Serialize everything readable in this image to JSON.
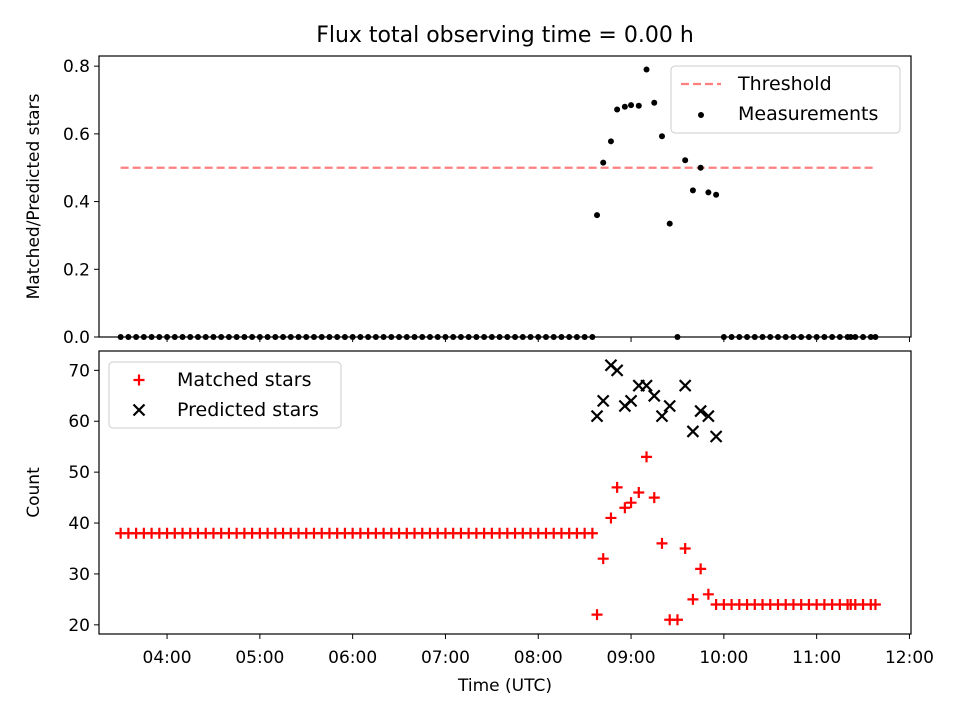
{
  "title": "Flux total observing time = 0.00 h",
  "chart_data": [
    {
      "type": "scatter",
      "ylabel": "Matched/Predicted stars",
      "ylim": [
        0,
        0.83
      ],
      "yticks": [
        0.0,
        0.2,
        0.4,
        0.6,
        0.8
      ],
      "ytick_labels": [
        "0.0",
        "0.2",
        "0.4",
        "0.6",
        "0.8"
      ],
      "legend": {
        "placement": "top-right",
        "entries": [
          "Threshold",
          "Measurements"
        ]
      },
      "threshold": {
        "name": "Threshold",
        "value": 0.5,
        "x_start": "03:30",
        "x_end": "11:38",
        "color": "#ff7f7f"
      },
      "series": [
        {
          "name": "Measurements",
          "marker": "dot",
          "color": "#000000",
          "points": [
            [
              "03:30",
              0
            ],
            [
              "03:35",
              0
            ],
            [
              "03:40",
              0
            ],
            [
              "03:45",
              0
            ],
            [
              "03:50",
              0
            ],
            [
              "03:55",
              0
            ],
            [
              "04:00",
              0
            ],
            [
              "04:05",
              0
            ],
            [
              "04:10",
              0
            ],
            [
              "04:15",
              0
            ],
            [
              "04:20",
              0
            ],
            [
              "04:25",
              0
            ],
            [
              "04:30",
              0
            ],
            [
              "04:35",
              0
            ],
            [
              "04:40",
              0
            ],
            [
              "04:45",
              0
            ],
            [
              "04:50",
              0
            ],
            [
              "04:55",
              0
            ],
            [
              "05:00",
              0
            ],
            [
              "05:05",
              0
            ],
            [
              "05:10",
              0
            ],
            [
              "05:15",
              0
            ],
            [
              "05:20",
              0
            ],
            [
              "05:25",
              0
            ],
            [
              "05:30",
              0
            ],
            [
              "05:35",
              0
            ],
            [
              "05:40",
              0
            ],
            [
              "05:45",
              0
            ],
            [
              "05:50",
              0
            ],
            [
              "05:55",
              0
            ],
            [
              "06:00",
              0
            ],
            [
              "06:05",
              0
            ],
            [
              "06:10",
              0
            ],
            [
              "06:15",
              0
            ],
            [
              "06:20",
              0
            ],
            [
              "06:25",
              0
            ],
            [
              "06:30",
              0
            ],
            [
              "06:35",
              0
            ],
            [
              "06:40",
              0
            ],
            [
              "06:45",
              0
            ],
            [
              "06:50",
              0
            ],
            [
              "06:55",
              0
            ],
            [
              "07:00",
              0
            ],
            [
              "07:05",
              0
            ],
            [
              "07:10",
              0
            ],
            [
              "07:15",
              0
            ],
            [
              "07:20",
              0
            ],
            [
              "07:25",
              0
            ],
            [
              "07:30",
              0
            ],
            [
              "07:35",
              0
            ],
            [
              "07:40",
              0
            ],
            [
              "07:45",
              0
            ],
            [
              "07:50",
              0
            ],
            [
              "07:55",
              0
            ],
            [
              "08:00",
              0
            ],
            [
              "08:05",
              0
            ],
            [
              "08:10",
              0
            ],
            [
              "08:15",
              0
            ],
            [
              "08:20",
              0
            ],
            [
              "08:25",
              0
            ],
            [
              "08:30",
              0
            ],
            [
              "08:35",
              0
            ],
            [
              "08:38",
              0.36
            ],
            [
              "08:42",
              0.515
            ],
            [
              "08:47",
              0.578
            ],
            [
              "08:51",
              0.672
            ],
            [
              "08:56",
              0.68
            ],
            [
              "09:00",
              0.685
            ],
            [
              "09:05",
              0.683
            ],
            [
              "09:10",
              0.79
            ],
            [
              "09:15",
              0.692
            ],
            [
              "09:20",
              0.593
            ],
            [
              "09:25",
              0.335
            ],
            [
              "09:30",
              0
            ],
            [
              "09:35",
              0.522
            ],
            [
              "09:40",
              0.433
            ],
            [
              "09:45",
              0.5
            ],
            [
              "09:50",
              0.427
            ],
            [
              "09:55",
              0.42
            ],
            [
              "10:00",
              0
            ],
            [
              "10:05",
              0
            ],
            [
              "10:10",
              0
            ],
            [
              "10:15",
              0
            ],
            [
              "10:20",
              0
            ],
            [
              "10:25",
              0
            ],
            [
              "10:30",
              0
            ],
            [
              "10:35",
              0
            ],
            [
              "10:40",
              0
            ],
            [
              "10:45",
              0
            ],
            [
              "10:50",
              0
            ],
            [
              "10:55",
              0
            ],
            [
              "11:00",
              0
            ],
            [
              "11:05",
              0
            ],
            [
              "11:10",
              0
            ],
            [
              "11:15",
              0
            ],
            [
              "11:20",
              0
            ],
            [
              "11:22",
              0
            ],
            [
              "11:25",
              0
            ],
            [
              "11:30",
              0
            ],
            [
              "11:35",
              0
            ],
            [
              "11:38",
              0
            ]
          ]
        }
      ]
    },
    {
      "type": "scatter",
      "xlabel": "Time (UTC)",
      "ylabel": "Count",
      "xlim": [
        "03:16",
        "12:01"
      ],
      "ylim": [
        18.2,
        73.8
      ],
      "xticks": [
        "04:00",
        "05:00",
        "06:00",
        "07:00",
        "08:00",
        "09:00",
        "10:00",
        "11:00",
        "12:00"
      ],
      "yticks": [
        20,
        30,
        40,
        50,
        60,
        70
      ],
      "ytick_labels": [
        "20",
        "30",
        "40",
        "50",
        "60",
        "70"
      ],
      "legend": {
        "placement": "top-left",
        "entries": [
          "Matched stars",
          "Predicted stars"
        ]
      },
      "series": [
        {
          "name": "Matched stars",
          "marker": "plus",
          "color": "#ff0000",
          "points": [
            [
              "03:30",
              38
            ],
            [
              "03:35",
              38
            ],
            [
              "03:40",
              38
            ],
            [
              "03:45",
              38
            ],
            [
              "03:50",
              38
            ],
            [
              "03:55",
              38
            ],
            [
              "04:00",
              38
            ],
            [
              "04:05",
              38
            ],
            [
              "04:10",
              38
            ],
            [
              "04:15",
              38
            ],
            [
              "04:20",
              38
            ],
            [
              "04:25",
              38
            ],
            [
              "04:30",
              38
            ],
            [
              "04:35",
              38
            ],
            [
              "04:40",
              38
            ],
            [
              "04:45",
              38
            ],
            [
              "04:50",
              38
            ],
            [
              "04:55",
              38
            ],
            [
              "05:00",
              38
            ],
            [
              "05:05",
              38
            ],
            [
              "05:10",
              38
            ],
            [
              "05:15",
              38
            ],
            [
              "05:20",
              38
            ],
            [
              "05:25",
              38
            ],
            [
              "05:30",
              38
            ],
            [
              "05:35",
              38
            ],
            [
              "05:40",
              38
            ],
            [
              "05:45",
              38
            ],
            [
              "05:50",
              38
            ],
            [
              "05:55",
              38
            ],
            [
              "06:00",
              38
            ],
            [
              "06:05",
              38
            ],
            [
              "06:10",
              38
            ],
            [
              "06:15",
              38
            ],
            [
              "06:20",
              38
            ],
            [
              "06:25",
              38
            ],
            [
              "06:30",
              38
            ],
            [
              "06:35",
              38
            ],
            [
              "06:40",
              38
            ],
            [
              "06:45",
              38
            ],
            [
              "06:50",
              38
            ],
            [
              "06:55",
              38
            ],
            [
              "07:00",
              38
            ],
            [
              "07:05",
              38
            ],
            [
              "07:10",
              38
            ],
            [
              "07:15",
              38
            ],
            [
              "07:20",
              38
            ],
            [
              "07:25",
              38
            ],
            [
              "07:30",
              38
            ],
            [
              "07:35",
              38
            ],
            [
              "07:40",
              38
            ],
            [
              "07:45",
              38
            ],
            [
              "07:50",
              38
            ],
            [
              "07:55",
              38
            ],
            [
              "08:00",
              38
            ],
            [
              "08:05",
              38
            ],
            [
              "08:10",
              38
            ],
            [
              "08:15",
              38
            ],
            [
              "08:20",
              38
            ],
            [
              "08:25",
              38
            ],
            [
              "08:30",
              38
            ],
            [
              "08:35",
              38
            ],
            [
              "08:38",
              22
            ],
            [
              "08:42",
              33
            ],
            [
              "08:47",
              41
            ],
            [
              "08:51",
              47
            ],
            [
              "08:56",
              43
            ],
            [
              "09:00",
              44
            ],
            [
              "09:05",
              46
            ],
            [
              "09:10",
              53
            ],
            [
              "09:15",
              45
            ],
            [
              "09:20",
              36
            ],
            [
              "09:25",
              21
            ],
            [
              "09:30",
              21
            ],
            [
              "09:35",
              35
            ],
            [
              "09:40",
              25
            ],
            [
              "09:45",
              31
            ],
            [
              "09:50",
              26
            ],
            [
              "09:55",
              24
            ],
            [
              "10:00",
              24
            ],
            [
              "10:05",
              24
            ],
            [
              "10:10",
              24
            ],
            [
              "10:15",
              24
            ],
            [
              "10:20",
              24
            ],
            [
              "10:25",
              24
            ],
            [
              "10:30",
              24
            ],
            [
              "10:35",
              24
            ],
            [
              "10:40",
              24
            ],
            [
              "10:45",
              24
            ],
            [
              "10:50",
              24
            ],
            [
              "10:55",
              24
            ],
            [
              "11:00",
              24
            ],
            [
              "11:05",
              24
            ],
            [
              "11:10",
              24
            ],
            [
              "11:15",
              24
            ],
            [
              "11:20",
              24
            ],
            [
              "11:22",
              24
            ],
            [
              "11:25",
              24
            ],
            [
              "11:30",
              24
            ],
            [
              "11:35",
              24
            ],
            [
              "11:38",
              24
            ]
          ]
        },
        {
          "name": "Predicted stars",
          "marker": "x",
          "color": "#000000",
          "points": [
            [
              "08:38",
              61
            ],
            [
              "08:42",
              64
            ],
            [
              "08:47",
              71
            ],
            [
              "08:51",
              70
            ],
            [
              "08:56",
              63
            ],
            [
              "09:00",
              64
            ],
            [
              "09:05",
              67
            ],
            [
              "09:10",
              67
            ],
            [
              "09:15",
              65
            ],
            [
              "09:20",
              61
            ],
            [
              "09:25",
              63
            ],
            [
              "09:35",
              67
            ],
            [
              "09:40",
              58
            ],
            [
              "09:45",
              62
            ],
            [
              "09:50",
              61
            ],
            [
              "09:55",
              57
            ]
          ]
        }
      ]
    }
  ]
}
